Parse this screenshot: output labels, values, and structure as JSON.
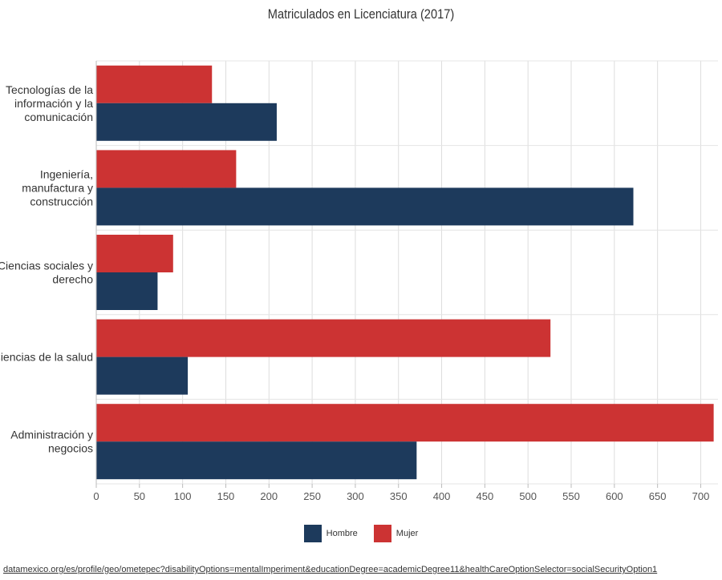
{
  "chart_data": {
    "type": "bar",
    "orientation": "horizontal",
    "title": "Matriculados en Licenciatura (2017)",
    "categories": [
      "Tecnologías de la información y la comunicación",
      "Ingeniería, manufactura y construcción",
      "Ciencias sociales y derecho",
      "Ciencias de la salud",
      "Administración y negocios"
    ],
    "category_lines": [
      [
        "Tecnologías de la",
        "información y la",
        "comunicación"
      ],
      [
        "Ingeniería,",
        "manufactura y",
        "construcción"
      ],
      [
        "Ciencias sociales y",
        "derecho"
      ],
      [
        "Ciencias de la salud"
      ],
      [
        "Administración y",
        "negocios"
      ]
    ],
    "series": [
      {
        "name": "Mujer",
        "color": "#cc3333",
        "values": [
          134,
          162,
          89,
          526,
          715
        ]
      },
      {
        "name": "Hombre",
        "color": "#1d3a5c",
        "values": [
          209,
          622,
          71,
          106,
          371
        ]
      }
    ],
    "xlim": [
      0,
      720
    ],
    "xticks": [
      0,
      50,
      100,
      150,
      200,
      250,
      300,
      350,
      400,
      450,
      500,
      550,
      600,
      650,
      700
    ],
    "grid": true,
    "legend_position": "bottom",
    "legend": [
      {
        "label": "Hombre",
        "color": "#1d3a5c"
      },
      {
        "label": "Mujer",
        "color": "#cc3333"
      }
    ]
  },
  "source_link": "datamexico.org/es/profile/geo/ometepec?disabilityOptions=mentalImperiment&educationDegree=academicDegree11&healthCareOptionSelector=socialSecurityOption1"
}
